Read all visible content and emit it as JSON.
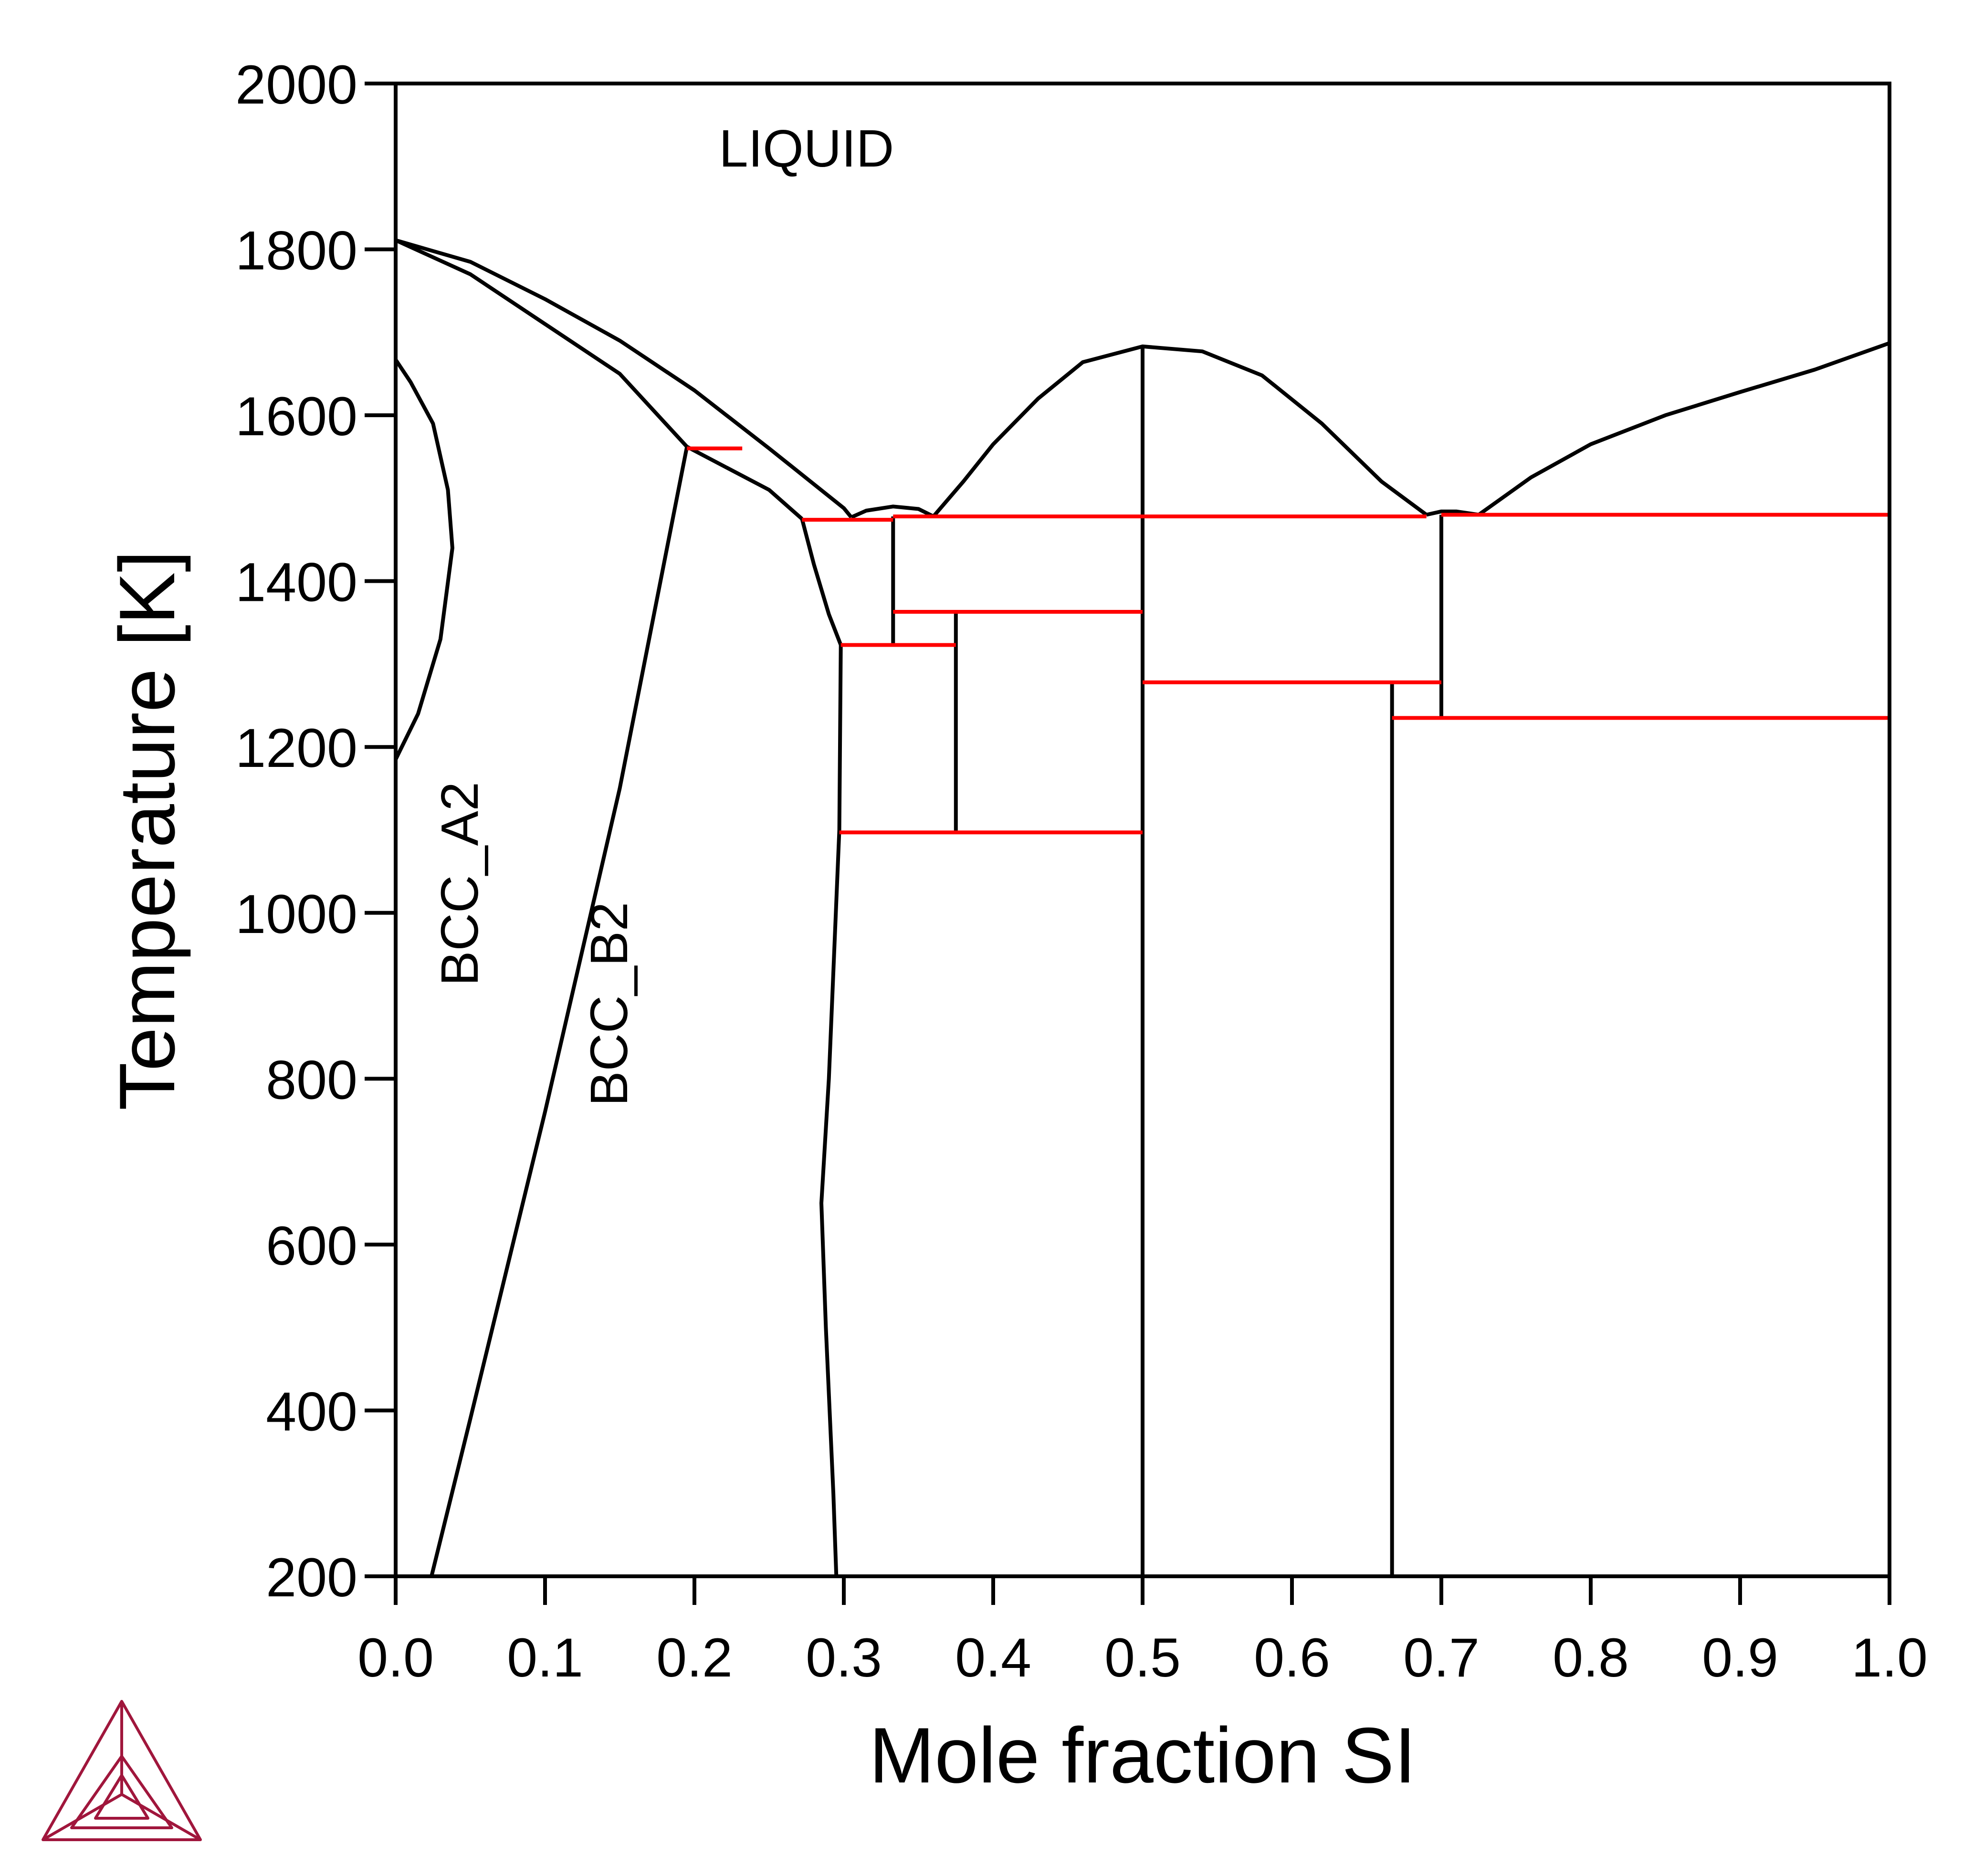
{
  "chart_data": {
    "type": "line",
    "xlabel": "Mole fraction SI",
    "ylabel": "Temperature [K]",
    "xlim": [
      0,
      1
    ],
    "ylim": [
      200,
      2000
    ],
    "xticks": [
      "0.0",
      "0.1",
      "0.2",
      "0.3",
      "0.4",
      "0.5",
      "0.6",
      "0.7",
      "0.8",
      "0.9",
      "1.0"
    ],
    "yticks": [
      "200",
      "400",
      "600",
      "800",
      "1000",
      "1200",
      "1400",
      "1600",
      "1800",
      "2000"
    ],
    "grid": false,
    "colors": {
      "phase_boundary": "#000000",
      "invariant_line": "#ff0000",
      "logo": "#a0163c"
    },
    "region_labels": [
      {
        "text": "LIQUID",
        "x": 0.275,
        "y": 1900,
        "rotate": 0
      },
      {
        "text": "BCC_A2",
        "x": 0.055,
        "y": 1035,
        "rotate": -90
      },
      {
        "text": "BCC_B2",
        "x": 0.155,
        "y": 890,
        "rotate": -90
      }
    ],
    "boundaries": [
      {
        "name": "liquidus-left",
        "color": "black",
        "points": [
          [
            0,
            1811
          ],
          [
            0.05,
            1785
          ],
          [
            0.1,
            1740
          ],
          [
            0.15,
            1690
          ],
          [
            0.2,
            1630
          ],
          [
            0.25,
            1560
          ],
          [
            0.3,
            1488
          ],
          [
            0.305,
            1477
          ]
        ]
      },
      {
        "name": "solidus-left",
        "color": "black",
        "points": [
          [
            0,
            1811
          ],
          [
            0.05,
            1770
          ],
          [
            0.1,
            1710
          ],
          [
            0.15,
            1650
          ],
          [
            0.195,
            1562
          ],
          [
            0.25,
            1510
          ],
          [
            0.272,
            1475
          ]
        ]
      },
      {
        "name": "liquidus-small-dome",
        "color": "black",
        "points": [
          [
            0.305,
            1477
          ],
          [
            0.315,
            1485
          ],
          [
            0.333,
            1490
          ],
          [
            0.35,
            1487
          ],
          [
            0.36,
            1478
          ]
        ]
      },
      {
        "name": "liquidus-central-dome",
        "color": "black",
        "points": [
          [
            0.36,
            1478
          ],
          [
            0.38,
            1520
          ],
          [
            0.4,
            1565
          ],
          [
            0.43,
            1620
          ],
          [
            0.46,
            1664
          ],
          [
            0.5,
            1683
          ],
          [
            0.54,
            1677
          ],
          [
            0.58,
            1648
          ],
          [
            0.62,
            1590
          ],
          [
            0.66,
            1520
          ],
          [
            0.69,
            1480
          ]
        ]
      },
      {
        "name": "liquidus-small-dome-2",
        "color": "black",
        "points": [
          [
            0.69,
            1480
          ],
          [
            0.7,
            1484
          ],
          [
            0.71,
            1484
          ],
          [
            0.725,
            1480
          ]
        ]
      },
      {
        "name": "liquidus-right",
        "color": "black",
        "points": [
          [
            0.725,
            1480
          ],
          [
            0.76,
            1525
          ],
          [
            0.8,
            1565
          ],
          [
            0.85,
            1600
          ],
          [
            0.9,
            1628
          ],
          [
            0.95,
            1655
          ],
          [
            1.0,
            1687
          ]
        ]
      },
      {
        "name": "a2-b2-transition",
        "color": "black",
        "points": [
          [
            0,
            1185
          ],
          [
            0.015,
            1240
          ],
          [
            0.03,
            1330
          ],
          [
            0.038,
            1440
          ],
          [
            0.035,
            1510
          ],
          [
            0.025,
            1590
          ],
          [
            0.01,
            1640
          ],
          [
            0,
            1667
          ]
        ]
      },
      {
        "name": "b2-solvus-left",
        "color": "black",
        "points": [
          [
            0.024,
            200
          ],
          [
            0.05,
            390
          ],
          [
            0.1,
            760
          ],
          [
            0.15,
            1150
          ],
          [
            0.195,
            1562
          ]
        ]
      },
      {
        "name": "phase-boundary-x030",
        "color": "black",
        "points": [
          [
            0.272,
            1475
          ],
          [
            0.28,
            1420
          ],
          [
            0.29,
            1360
          ],
          [
            0.298,
            1323
          ],
          [
            0.297,
            1100
          ],
          [
            0.29,
            800
          ],
          [
            0.285,
            650
          ],
          [
            0.288,
            500
          ],
          [
            0.293,
            300
          ],
          [
            0.295,
            200
          ]
        ]
      },
      {
        "name": "compound-x0333",
        "color": "black",
        "points": [
          [
            0.333,
            1478
          ],
          [
            0.333,
            1323
          ]
        ]
      },
      {
        "name": "compound-x0375",
        "color": "black",
        "points": [
          [
            0.375,
            1363
          ],
          [
            0.375,
            1097
          ]
        ]
      },
      {
        "name": "compound-x050",
        "color": "black",
        "points": [
          [
            0.5,
            1683
          ],
          [
            0.5,
            200
          ]
        ]
      },
      {
        "name": "compound-x0667",
        "color": "black",
        "points": [
          [
            0.667,
            1278
          ],
          [
            0.667,
            200
          ]
        ]
      },
      {
        "name": "compound-x070",
        "color": "black",
        "points": [
          [
            0.7,
            1480
          ],
          [
            0.7,
            1235
          ]
        ]
      },
      {
        "name": "invariant-1560",
        "color": "red",
        "points": [
          [
            0.195,
            1560
          ],
          [
            0.232,
            1560
          ]
        ]
      },
      {
        "name": "invariant-1474",
        "color": "red",
        "points": [
          [
            0.272,
            1474
          ],
          [
            0.333,
            1474
          ]
        ]
      },
      {
        "name": "invariant-1478",
        "color": "red",
        "points": [
          [
            0.333,
            1478
          ],
          [
            0.69,
            1478
          ]
        ]
      },
      {
        "name": "invariant-1480",
        "color": "red",
        "points": [
          [
            0.7,
            1480
          ],
          [
            1.0,
            1480
          ]
        ]
      },
      {
        "name": "invariant-1363",
        "color": "red",
        "points": [
          [
            0.333,
            1363
          ],
          [
            0.5,
            1363
          ]
        ]
      },
      {
        "name": "invariant-1323",
        "color": "red",
        "points": [
          [
            0.298,
            1323
          ],
          [
            0.375,
            1323
          ]
        ]
      },
      {
        "name": "invariant-1278",
        "color": "red",
        "points": [
          [
            0.5,
            1278
          ],
          [
            0.7,
            1278
          ]
        ]
      },
      {
        "name": "invariant-1235",
        "color": "red",
        "points": [
          [
            0.667,
            1235
          ],
          [
            1.0,
            1235
          ]
        ]
      },
      {
        "name": "invariant-1097",
        "color": "red",
        "points": [
          [
            0.297,
            1097
          ],
          [
            0.5,
            1097
          ]
        ]
      }
    ]
  }
}
